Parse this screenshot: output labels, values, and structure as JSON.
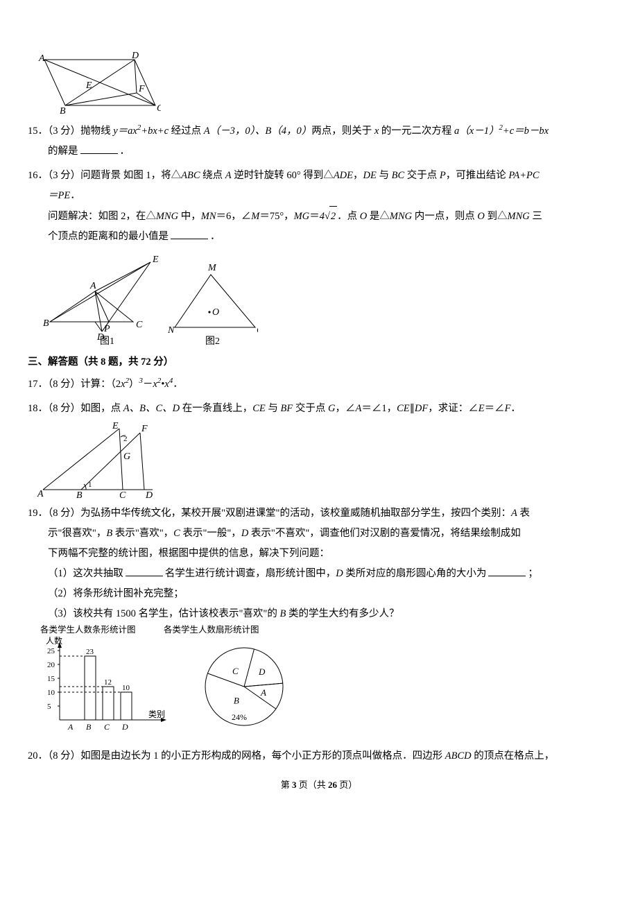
{
  "figTop": {
    "labels": {
      "A": "A",
      "B": "B",
      "C": "C",
      "D": "D",
      "E": "E",
      "F": "F"
    }
  },
  "q15": {
    "num": "15．（3 分）",
    "text1": "抛物线 ",
    "eq1": "y＝ax",
    "eq2": "+bx+c",
    "text2": " 经过点 ",
    "ptA": "A（－3，0）、",
    "ptB": "B（4，0）",
    "text3": "两点，则关于 ",
    "varx": "x",
    "text4": " 的一元二次方程 ",
    "eq3a": "a（x－1）",
    "eq3b": "+c＝b－bx",
    "text5": "的解是",
    "period": "．"
  },
  "q16": {
    "num": "16．（3 分）",
    "bg1": "问题背景 如图 1，将△",
    "ABC": "ABC",
    "bg2": " 绕点 ",
    "A": "A",
    "bg3": " 逆时针旋转 60° 得到△",
    "ADE": "ADE",
    "bg4": "，",
    "DE": "DE",
    "bg5": " 与 ",
    "BC": "BC",
    "bg6": " 交于点 ",
    "P": "P",
    "bg7": "，可推出结论 ",
    "eqPA": "PA+PC",
    "eqPE": "＝PE",
    "bg8": "．",
    "sol1": "问题解决：如图 2，在△",
    "MNG": "MNG",
    "sol2": " 中，",
    "MN": "MN",
    "sol3": "＝6，∠",
    "M": "M",
    "sol4": "＝75°，",
    "MG": "MG",
    "sol5": "＝",
    "sqrtCoef": "4",
    "sqrtRad": "2",
    "sol6": "．点 ",
    "O": "O",
    "sol7": " 是△",
    "sol8": " 内一点，则点 ",
    "sol9": " 到△",
    "sol10": " 三",
    "sol11": "个顶点的距离和的最小值是",
    "period": "．",
    "figLabels": {
      "fig1": "图1",
      "fig2": "图2",
      "A": "A",
      "B": "B",
      "C": "C",
      "D": "D",
      "E": "E",
      "P": "P",
      "M": "M",
      "N": "N",
      "G": "G",
      "O": "O"
    }
  },
  "sectionThree": "三、解答题（共 8 题，共 72 分）",
  "q17": {
    "num": "17．（8 分）",
    "text1": "计算：（2",
    "x2": "x",
    "text2": "）",
    "text3": "－",
    "text4": "•",
    "text5": "．"
  },
  "q18": {
    "num": "18．（8 分）",
    "t1": "如图，点 ",
    "ABCD": "A、B、C、D",
    "t2": " 在一条直线上，",
    "CE": "CE",
    "t3": " 与 ",
    "BF": "BF",
    "t4": " 交于点 ",
    "G": "G",
    "t5": "，∠",
    "A": "A",
    "t6": "＝∠1，",
    "t7": "∥",
    "DF": "DF",
    "t8": "，求证：∠",
    "E": "E",
    "t9": "＝∠",
    "F": "F",
    "t10": "．",
    "figLabels": {
      "A": "A",
      "B": "B",
      "C": "C",
      "D": "D",
      "E": "E",
      "F": "F",
      "G": "G",
      "a1": "1",
      "a2": "2"
    }
  },
  "q19": {
    "num": "19．（8 分）",
    "intro1": "为弘扬中华传统文化，某校开展\"双剧进课堂\"的活动，该校童威随机抽取部分学生，按四个类别：",
    "At": "A",
    "intro2": " 表",
    "intro3": "示\"很喜欢\"，",
    "Bt": "B",
    "intro4": " 表示\"喜欢\"，",
    "Ct": "C",
    "intro5": " 表示\"一般\"，",
    "Dt": "D",
    "intro6": " 表示\"不喜欢\"，调查他们对汉剧的喜爱情况，将结果绘制成如",
    "intro7": "下两幅不完整的统计图，根据图中提供的信息，解决下列问题：",
    "p1a": "（1）这次共抽取",
    "p1b": "名学生进行统计调查，扇形统计图中，",
    "p1c": " 类所对应的扇形圆心角的大小为",
    "p1d": "；",
    "p2": "（2）将条形统计图补充完整；",
    "p3a": "（3）该校共有 1500 名学生，估计该校表示\"喜欢\"的 ",
    "p3b": " 类的学生大约有多少人？",
    "barChart": {
      "title": "各类学生人数条形统计图",
      "yLabel": "人数",
      "xLabel": "类别",
      "yMax": 25,
      "yStep": 5,
      "categories": [
        "A",
        "B",
        "C",
        "D"
      ],
      "values": [
        null,
        23,
        12,
        10
      ],
      "valueLabels": [
        "",
        "23",
        "12",
        "10"
      ],
      "barColor": "#ffffff",
      "barBorder": "#000000",
      "gridColor": "#000000",
      "fontSize": 11
    },
    "pieChart": {
      "title": "各类学生人数扇形统计图",
      "labels": [
        "A",
        "B",
        "C",
        "D"
      ],
      "angles": [
        40,
        165,
        85,
        70
      ],
      "startAngle": -5,
      "pctLabel": "24%",
      "borderColor": "#000000",
      "fillColor": "#ffffff",
      "fontSize": 13
    }
  },
  "q20": {
    "num": "20．（8 分）",
    "t1": "如图是由边长为 1 的小正方形构成的网格，每个小正方形的顶点叫做格点．四边形 ",
    "ABCD": "ABCD",
    "t2": " 的顶点在格点上，"
  },
  "footer": {
    "a": "第 ",
    "page": "3",
    "b": " 页（共 ",
    "total": "26",
    "c": " 页）"
  }
}
